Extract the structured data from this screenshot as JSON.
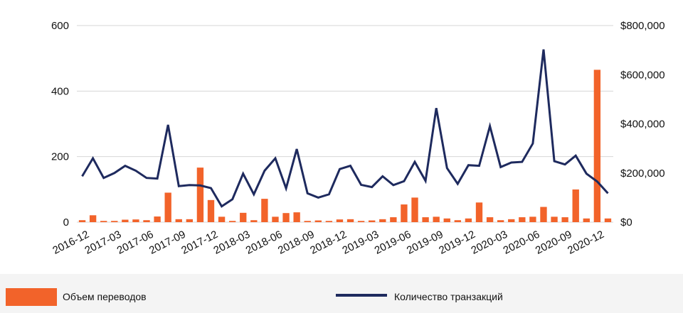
{
  "chart_data": {
    "type": "bar+line",
    "x": [
      "2016-12",
      "2017-01",
      "2017-02",
      "2017-03",
      "2017-04",
      "2017-05",
      "2017-06",
      "2017-07",
      "2017-08",
      "2017-09",
      "2017-10",
      "2017-11",
      "2017-12",
      "2018-01",
      "2018-02",
      "2018-03",
      "2018-04",
      "2018-05",
      "2018-06",
      "2018-07",
      "2018-08",
      "2018-09",
      "2018-10",
      "2018-11",
      "2018-12",
      "2019-01",
      "2019-02",
      "2019-03",
      "2019-04",
      "2019-05",
      "2019-06",
      "2019-07",
      "2019-08",
      "2019-09",
      "2019-10",
      "2019-11",
      "2019-12",
      "2020-01",
      "2020-02",
      "2020-03",
      "2020-04",
      "2020-05",
      "2020-06",
      "2020-07",
      "2020-08",
      "2020-09",
      "2020-10",
      "2020-11",
      "2020-12",
      "2021-01"
    ],
    "x_tick_labels": [
      "2016-12",
      "2017-03",
      "2017-06",
      "2017-09",
      "2017-12",
      "2018-03",
      "2018-06",
      "2018-09",
      "2018-12",
      "2019-03",
      "2019-06",
      "2019-09",
      "2019-12",
      "2020-03",
      "2020-06",
      "2020-09",
      "2020-12"
    ],
    "series": [
      {
        "name": "Объем переводов",
        "type": "bar",
        "axis": "right",
        "color": "#f2632a",
        "values": [
          8000,
          28000,
          5000,
          5000,
          10000,
          11000,
          8000,
          23000,
          120000,
          12000,
          12000,
          222000,
          90000,
          22000,
          5000,
          38000,
          8000,
          95000,
          22000,
          37000,
          40000,
          5000,
          7000,
          5000,
          11000,
          12000,
          5000,
          7000,
          12000,
          20000,
          72000,
          100000,
          20000,
          22000,
          15000,
          8000,
          15000,
          80000,
          20000,
          8000,
          12000,
          20000,
          22000,
          62000,
          22000,
          20000,
          133000,
          15000,
          620000,
          15000
        ]
      },
      {
        "name": "Количество транзакций",
        "type": "line",
        "axis": "left",
        "color": "#1e2a5e",
        "values": [
          140,
          195,
          135,
          150,
          172,
          157,
          135,
          133,
          297,
          110,
          113,
          112,
          104,
          48,
          70,
          148,
          85,
          157,
          195,
          103,
          223,
          88,
          75,
          85,
          162,
          172,
          114,
          107,
          140,
          113,
          125,
          184,
          126,
          348,
          165,
          117,
          174,
          172,
          293,
          168,
          182,
          184,
          240,
          527,
          186,
          176,
          203,
          148,
          124,
          88
        ]
      }
    ],
    "y_left": {
      "ylim": [
        0,
        600
      ],
      "ticks": [
        "0",
        "200",
        "400",
        "600"
      ]
    },
    "y_right": {
      "ylim": [
        0,
        800000
      ],
      "ticks": [
        "$0",
        "$200,000",
        "$400,000",
        "$600,000",
        "$800,000"
      ]
    },
    "grid": true,
    "legend_position": "bottom"
  },
  "legend": {
    "bar_label": "Объем переводов",
    "line_label": "Количество транзакций"
  }
}
